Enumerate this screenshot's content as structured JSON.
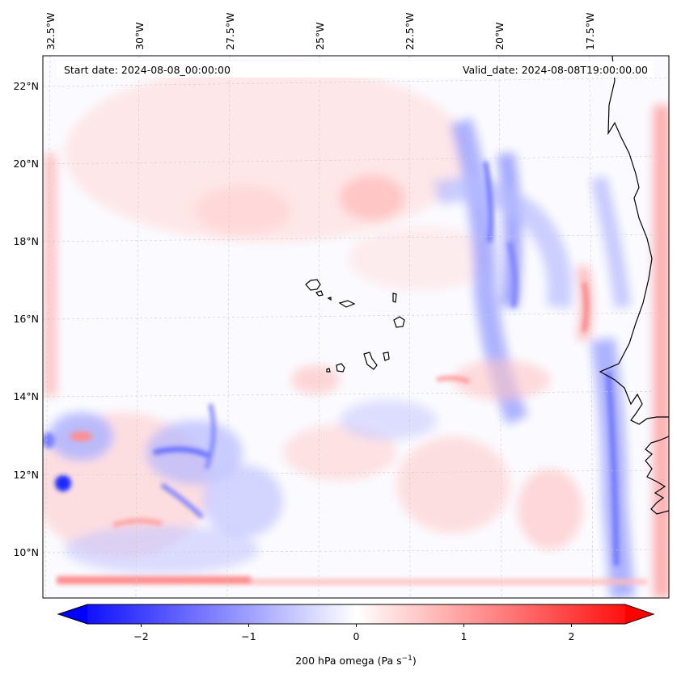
{
  "map": {
    "start_date": "Start date: 2024-08-08_00:00:00",
    "valid_date": "Valid_date: 2024-08-08T19:00:00.00",
    "lon_labels": [
      "32.5°W",
      "30°W",
      "27.5°W",
      "25°W",
      "22.5°W",
      "20°W",
      "17.5°W"
    ],
    "lat_labels": [
      "22°N",
      "20°N",
      "18°N",
      "16°N",
      "14°N",
      "12°N",
      "10°N"
    ],
    "field": "200 hPa omega",
    "colormap": "bwr",
    "colors": {
      "negative": "#0000ff",
      "zero": "#ffffff",
      "positive": "#ff0000",
      "coast": "#000000",
      "grid": "#bbbbbb"
    }
  },
  "colorbar": {
    "ticks": [
      "−2",
      "−1",
      "0",
      "1",
      "2"
    ],
    "tick_values": [
      -2,
      -1,
      0,
      1,
      2
    ],
    "range": [
      -2.5,
      2.5
    ],
    "label_main": "200 hPa omega (Pa s",
    "label_sup": "−1",
    "label_end": ")"
  }
}
